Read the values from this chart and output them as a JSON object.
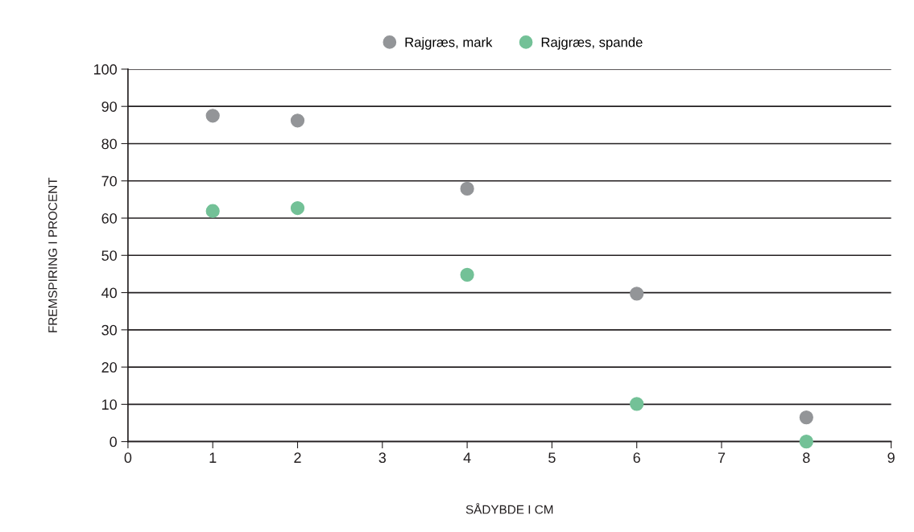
{
  "chart_data": {
    "type": "scatter",
    "xlabel": "SÅDYBDE I CM",
    "ylabel": "FREMSPIRING I PROCENT",
    "xlim": [
      0,
      9
    ],
    "xticks": [
      0,
      1,
      2,
      3,
      4,
      5,
      6,
      7,
      8,
      9
    ],
    "ylim": [
      0,
      100
    ],
    "yticks": [
      0,
      10,
      20,
      30,
      40,
      50,
      60,
      70,
      80,
      90,
      100
    ],
    "grid": "y",
    "legend": "top",
    "marker": "circle",
    "series": [
      {
        "name": "Rajgræs, mark",
        "color": "#939598",
        "x": [
          1,
          2,
          4,
          6,
          8
        ],
        "values": [
          87.5,
          86.2,
          67.9,
          39.7,
          6.5
        ]
      },
      {
        "name": "Rajgræs, spande",
        "color": "#73c197",
        "x": [
          1,
          2,
          4,
          6,
          8
        ],
        "values": [
          61.9,
          62.7,
          44.8,
          10.1,
          0
        ]
      }
    ]
  }
}
